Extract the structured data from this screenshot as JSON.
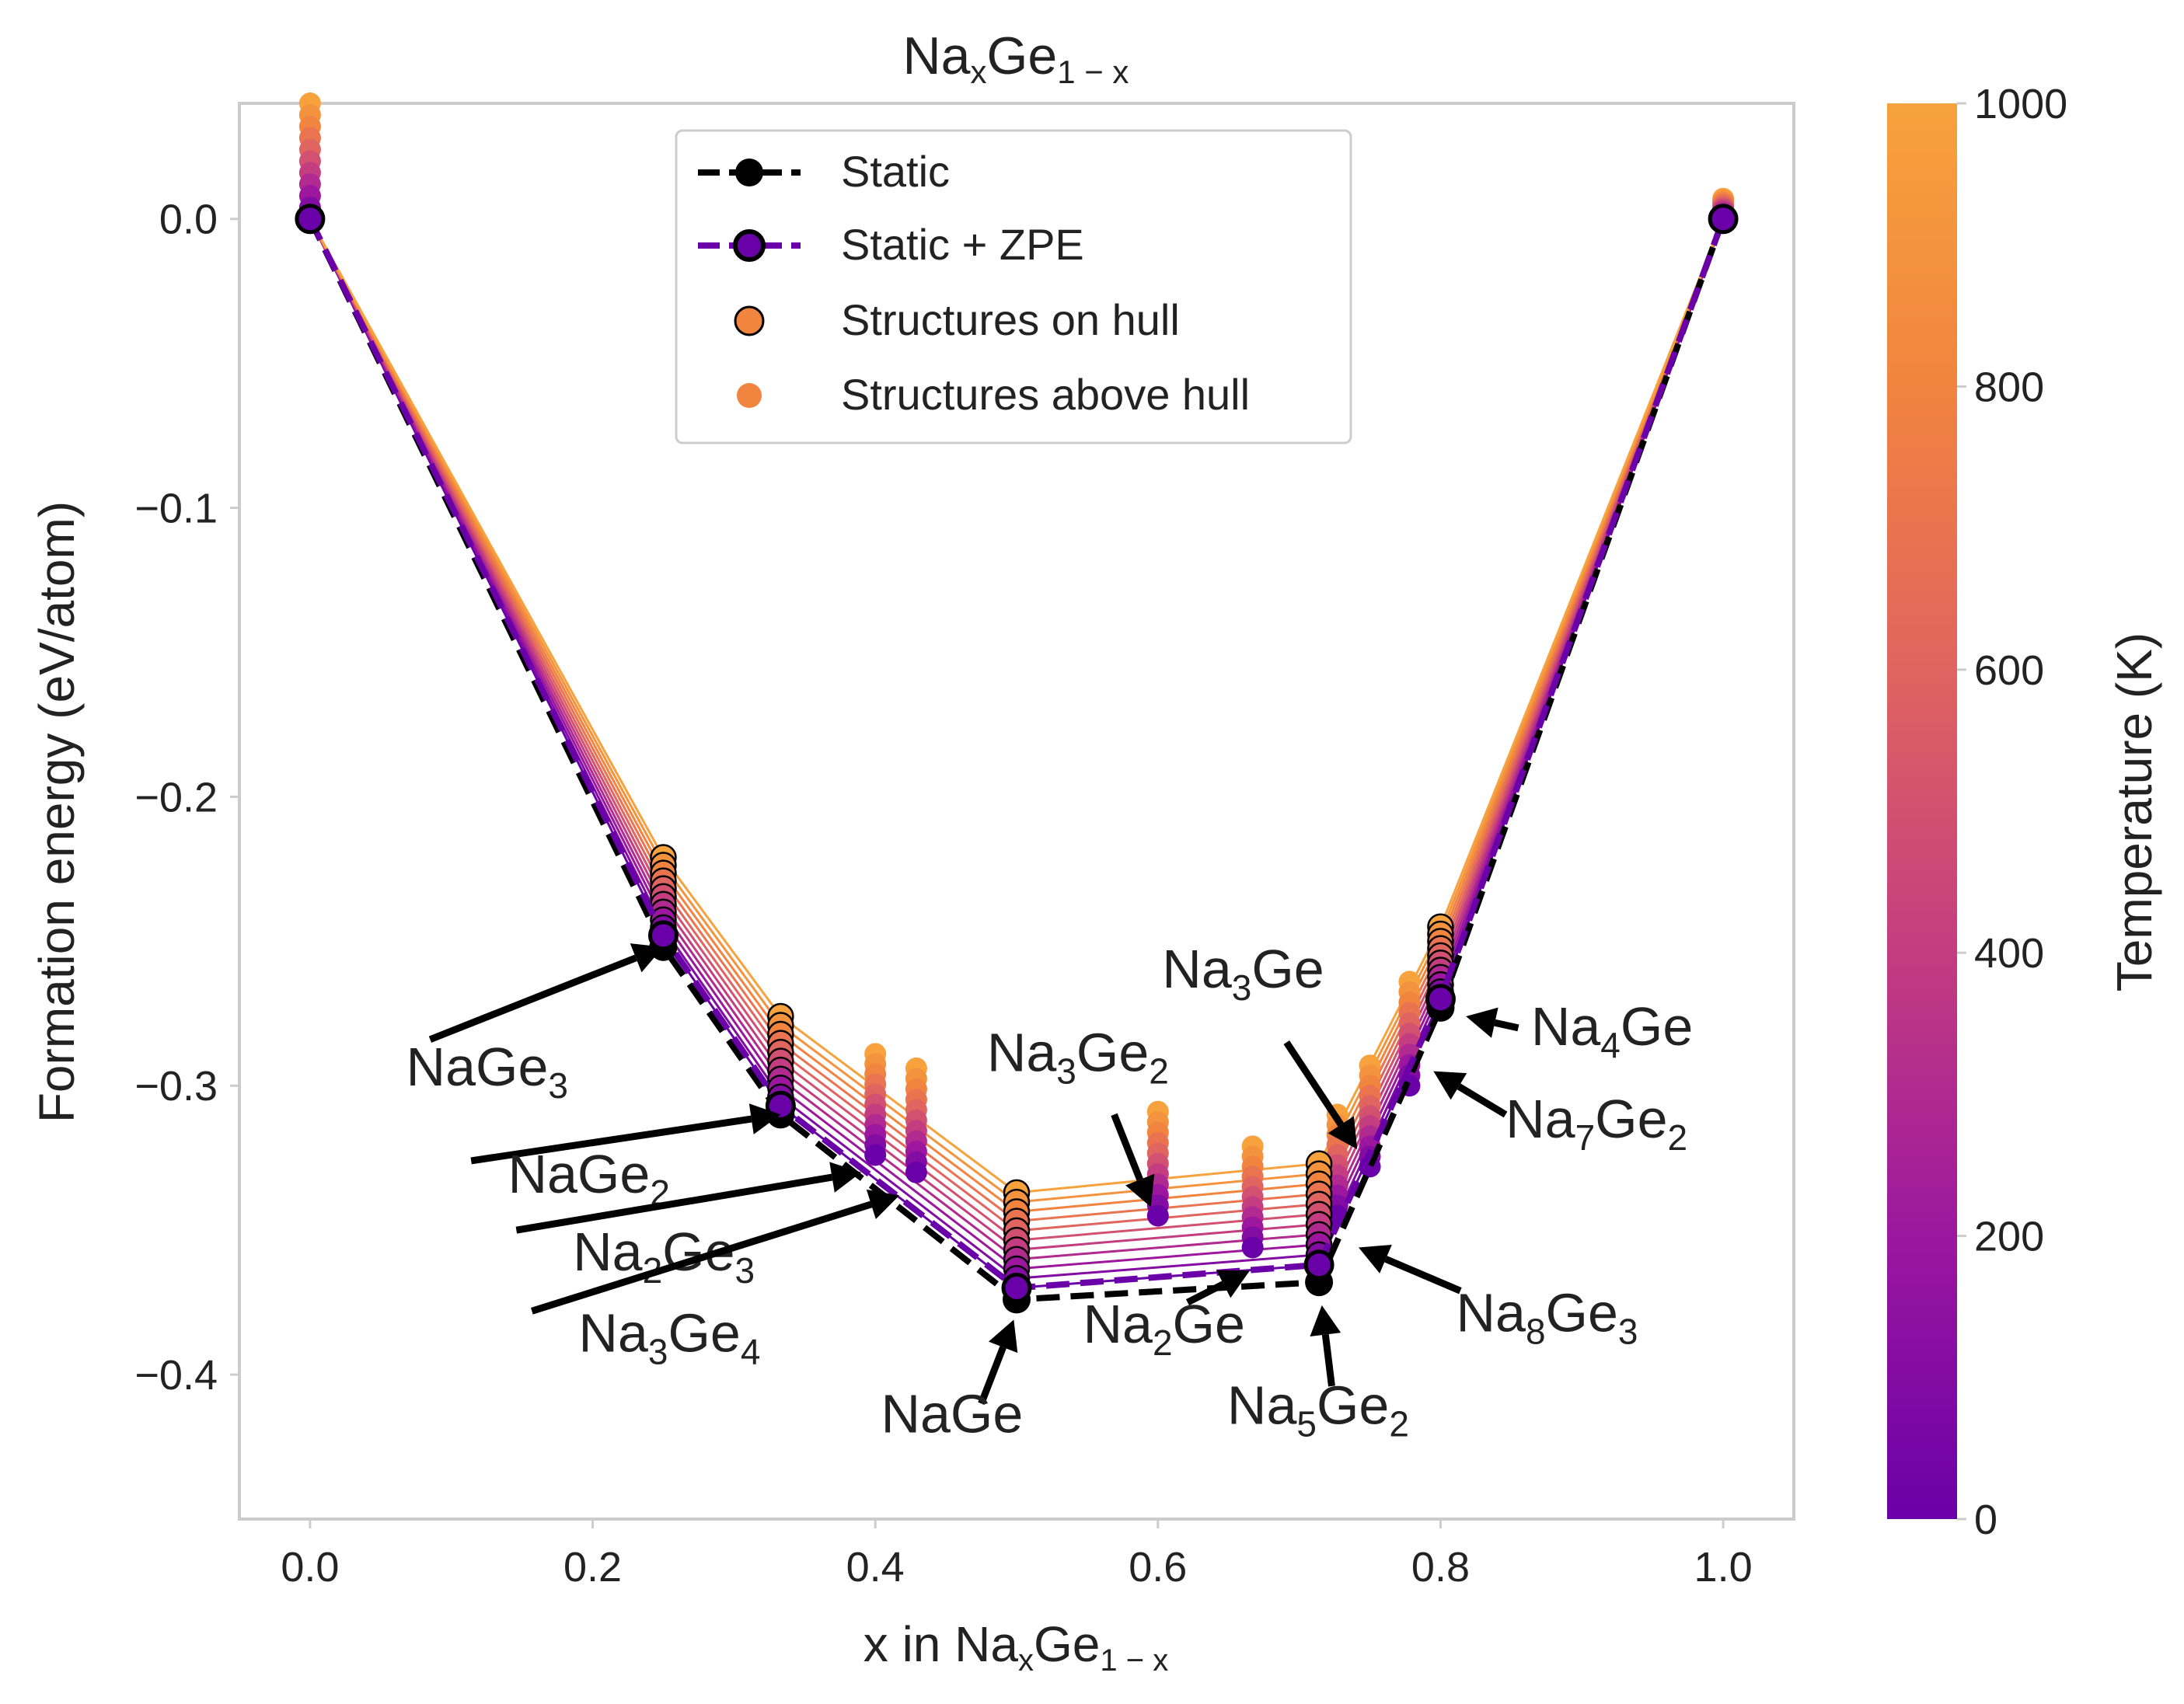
{
  "chart_data": {
    "type": "scatter",
    "title": {
      "base": "Na",
      "sub1": "x",
      "mid": "Ge",
      "sub2": "1 − x"
    },
    "xlabel": {
      "pre": "x in Na",
      "sub1": "x",
      "mid": "Ge",
      "sub2": "1 − x"
    },
    "ylabel": "Formation energy (eV/atom)",
    "xlim": [
      -0.05,
      1.05
    ],
    "ylim": [
      -0.45,
      0.04
    ],
    "x_ticks": [
      0.0,
      0.2,
      0.4,
      0.6,
      0.8,
      1.0
    ],
    "x_tick_labels": [
      "0.0",
      "0.2",
      "0.4",
      "0.6",
      "0.8",
      "1.0"
    ],
    "y_ticks": [
      0.0,
      -0.1,
      -0.2,
      -0.3,
      -0.4
    ],
    "y_tick_labels": [
      "0.0",
      "−0.1",
      "−0.2",
      "−0.3",
      "−0.4"
    ],
    "grid": false,
    "legend": {
      "position": "top-center",
      "entries": [
        "Static",
        "Static + ZPE",
        "Structures on hull",
        "Structures above hull"
      ]
    },
    "colorbar": {
      "label": "Temperature (K)",
      "min": 0,
      "max": 1000,
      "ticks": [
        0,
        200,
        400,
        600,
        800,
        1000
      ],
      "tick_labels": [
        "0",
        "200",
        "400",
        "600",
        "800",
        "1000"
      ],
      "colormap": [
        "#6a00a8",
        "#9c179e",
        "#c33d80",
        "#e0645f",
        "#f1843f",
        "#f7a23c"
      ]
    },
    "temperatures": [
      0,
      100,
      200,
      300,
      400,
      500,
      600,
      700,
      800,
      900,
      1000
    ],
    "series": [
      {
        "name": "Static",
        "color": "#000000",
        "x": [
          0.0,
          0.25,
          0.333,
          0.5,
          0.714,
          0.8,
          1.0
        ],
        "y": [
          0.0,
          -0.252,
          -0.31,
          -0.374,
          -0.368,
          -0.273,
          0.0
        ]
      },
      {
        "name": "Static + ZPE",
        "color": "#6a00a8",
        "x": [
          0.0,
          0.25,
          0.333,
          0.5,
          0.714,
          0.8,
          1.0
        ],
        "y": [
          0.0,
          -0.248,
          -0.307,
          -0.37,
          -0.362,
          -0.27,
          0.0
        ]
      }
    ],
    "hull_structures": [
      {
        "x": 0.0,
        "y0": 0.0,
        "y1000": 0.0
      },
      {
        "x": 0.25,
        "y0": -0.248,
        "y1000": -0.221
      },
      {
        "x": 0.333,
        "y0": -0.307,
        "y1000": -0.276
      },
      {
        "x": 0.5,
        "y0": -0.37,
        "y1000": -0.337
      },
      {
        "x": 0.714,
        "y0": -0.362,
        "y1000": -0.327
      },
      {
        "x": 0.8,
        "y0": -0.27,
        "y1000": -0.245
      },
      {
        "x": 1.0,
        "y0": 0.0,
        "y1000": 0.0
      }
    ],
    "above_hull_structures": [
      {
        "x": 0.4,
        "y0": -0.324,
        "y1000": -0.289
      },
      {
        "x": 0.429,
        "y0": -0.33,
        "y1000": -0.294
      },
      {
        "x": 0.6,
        "y0": -0.345,
        "y1000": -0.309
      },
      {
        "x": 0.667,
        "y0": -0.356,
        "y1000": -0.321
      },
      {
        "x": 0.727,
        "y0": -0.345,
        "y1000": -0.31
      },
      {
        "x": 0.75,
        "y0": -0.328,
        "y1000": -0.293
      },
      {
        "x": 0.778,
        "y0": -0.3,
        "y1000": -0.264
      },
      {
        "x": 0.0,
        "y0": 0.0,
        "y1000": 0.04
      },
      {
        "x": 1.0,
        "y0": 0.0,
        "y1000": 0.007
      }
    ],
    "annotations": [
      {
        "parts": [
          [
            "NaGe",
            0
          ],
          [
            "3",
            1
          ]
        ],
        "target_x": 0.25,
        "target_y": -0.252,
        "text_x": 0.068,
        "text_y": -0.3,
        "tail_x": 0.085,
        "tail_y": -0.284
      },
      {
        "parts": [
          [
            "NaGe",
            0
          ],
          [
            "2",
            1
          ]
        ],
        "target_x": 0.333,
        "target_y": -0.31,
        "text_x": 0.14,
        "text_y": -0.337,
        "tail_x": 0.114,
        "tail_y": -0.326
      },
      {
        "parts": [
          [
            "Na",
            0
          ],
          [
            "2",
            1
          ],
          [
            "Ge",
            0
          ],
          [
            "3",
            1
          ]
        ],
        "target_x": 0.39,
        "target_y": -0.33,
        "text_x": 0.186,
        "text_y": -0.364,
        "tail_x": 0.146,
        "tail_y": -0.35
      },
      {
        "parts": [
          [
            "Na",
            0
          ],
          [
            "3",
            1
          ],
          [
            "Ge",
            0
          ],
          [
            "4",
            1
          ]
        ],
        "target_x": 0.417,
        "target_y": -0.338,
        "text_x": 0.19,
        "text_y": -0.392,
        "tail_x": 0.157,
        "tail_y": -0.378
      },
      {
        "parts": [
          [
            "NaGe",
            0
          ]
        ],
        "target_x": 0.498,
        "target_y": -0.381,
        "text_x": 0.404,
        "text_y": -0.42,
        "tail_x": 0.475,
        "tail_y": -0.41
      },
      {
        "parts": [
          [
            "Na",
            0
          ],
          [
            "2",
            1
          ],
          [
            "Ge",
            0
          ]
        ],
        "target_x": 0.665,
        "target_y": -0.364,
        "text_x": 0.547,
        "text_y": -0.389,
        "tail_x": 0.621,
        "tail_y": -0.375
      },
      {
        "parts": [
          [
            "Na",
            0
          ],
          [
            "5",
            1
          ],
          [
            "Ge",
            0
          ],
          [
            "2",
            1
          ]
        ],
        "target_x": 0.716,
        "target_y": -0.376,
        "text_x": 0.649,
        "text_y": -0.417,
        "tail_x": 0.723,
        "tail_y": -0.404
      },
      {
        "parts": [
          [
            "Na",
            0
          ],
          [
            "8",
            1
          ],
          [
            "Ge",
            0
          ],
          [
            "3",
            1
          ]
        ],
        "target_x": 0.742,
        "target_y": -0.356,
        "text_x": 0.811,
        "text_y": -0.385,
        "tail_x": 0.814,
        "tail_y": -0.371
      },
      {
        "parts": [
          [
            "Na",
            0
          ],
          [
            "3",
            1
          ],
          [
            "Ge",
            0
          ],
          [
            "2",
            1
          ]
        ],
        "target_x": 0.595,
        "target_y": -0.342,
        "text_x": 0.479,
        "text_y": -0.295,
        "tail_x": 0.569,
        "tail_y": -0.31
      },
      {
        "parts": [
          [
            "Na",
            0
          ],
          [
            "3",
            1
          ],
          [
            "Ge",
            0
          ]
        ],
        "target_x": 0.741,
        "target_y": -0.322,
        "text_x": 0.603,
        "text_y": -0.266,
        "tail_x": 0.691,
        "tail_y": -0.285
      },
      {
        "parts": [
          [
            "Na",
            0
          ],
          [
            "4",
            1
          ],
          [
            "Ge",
            0
          ]
        ],
        "target_x": 0.818,
        "target_y": -0.276,
        "text_x": 0.864,
        "text_y": -0.286,
        "tail_x": 0.855,
        "tail_y": -0.28
      },
      {
        "parts": [
          [
            "Na",
            0
          ],
          [
            "7",
            1
          ],
          [
            "Ge",
            0
          ],
          [
            "2",
            1
          ]
        ],
        "target_x": 0.795,
        "target_y": -0.295,
        "text_x": 0.846,
        "text_y": -0.318,
        "tail_x": 0.846,
        "tail_y": -0.31
      }
    ]
  }
}
